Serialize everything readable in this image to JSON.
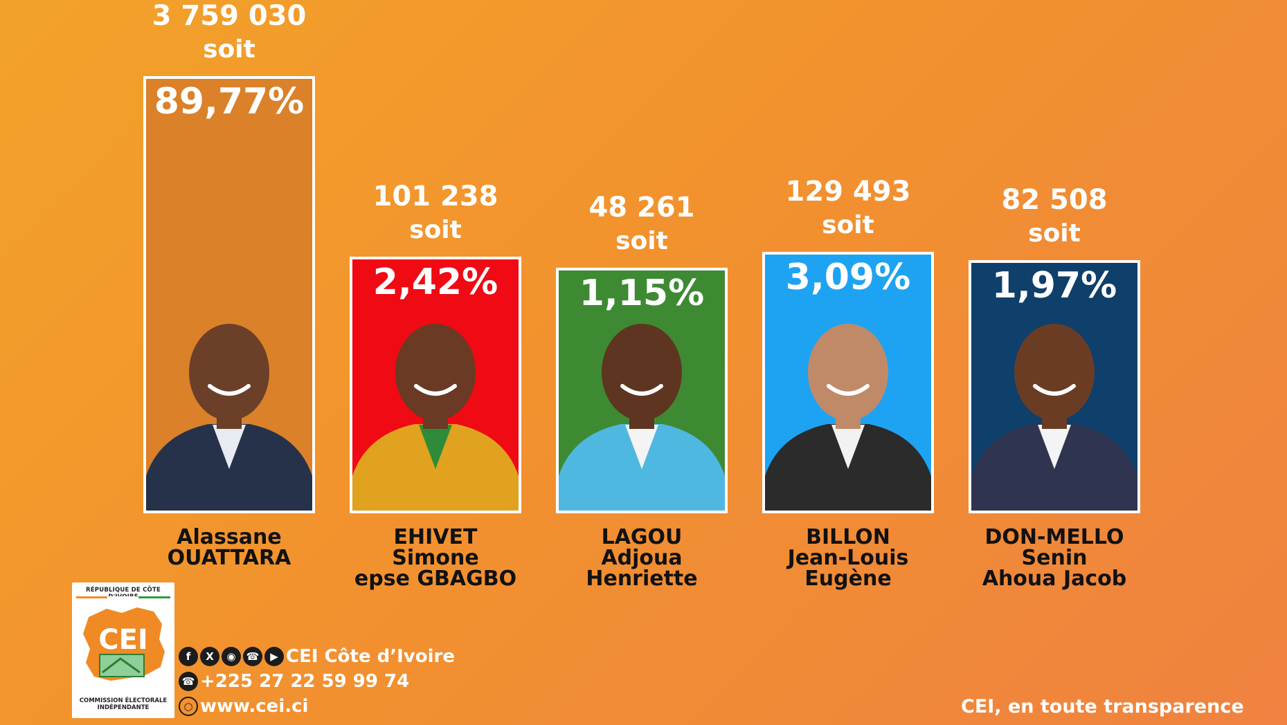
{
  "chart_data": {
    "type": "bar",
    "title": "",
    "xlabel": "",
    "ylabel": "",
    "connector_word": "soit",
    "categories": [
      [
        "Alassane",
        "OUATTARA"
      ],
      [
        "EHIVET",
        "Simone",
        "epse GBAGBO"
      ],
      [
        "LAGOU",
        "Adjoua",
        "Henriette"
      ],
      [
        "BILLON",
        "Jean-Louis",
        "Eugène"
      ],
      [
        "DON-MELLO",
        "Senin",
        "Ahoua Jacob"
      ]
    ],
    "votes": [
      "3 759 030",
      "101 238",
      "48 261",
      "129 493",
      "82 508"
    ],
    "percent_labels": [
      "89,77%",
      "2,42%",
      "1,15%",
      "3,09%",
      "1,97%"
    ],
    "values": [
      89.77,
      2.42,
      1.15,
      3.09,
      1.97
    ],
    "bar_colors": [
      "#da8129",
      "#f00a14",
      "#3d8a33",
      "#1ea3f3",
      "#0f3f6b"
    ]
  },
  "footer": {
    "logo": {
      "top_text": "RÉPUBLIQUE DE CÔTE D'IVOIRE",
      "acronym": "CEI",
      "bottom_text": "COMMISSION ÉLECTORALE INDÉPENDANTE"
    },
    "social_label": "CEI Côte d’Ivoire",
    "social_icons": [
      "facebook-icon",
      "x-icon",
      "instagram-icon",
      "whatsapp-icon",
      "youtube-icon"
    ],
    "phone": "+225 27 22 59 99 74",
    "website": "www.cei.ci",
    "tagline": "CEI, en toute transparence"
  }
}
